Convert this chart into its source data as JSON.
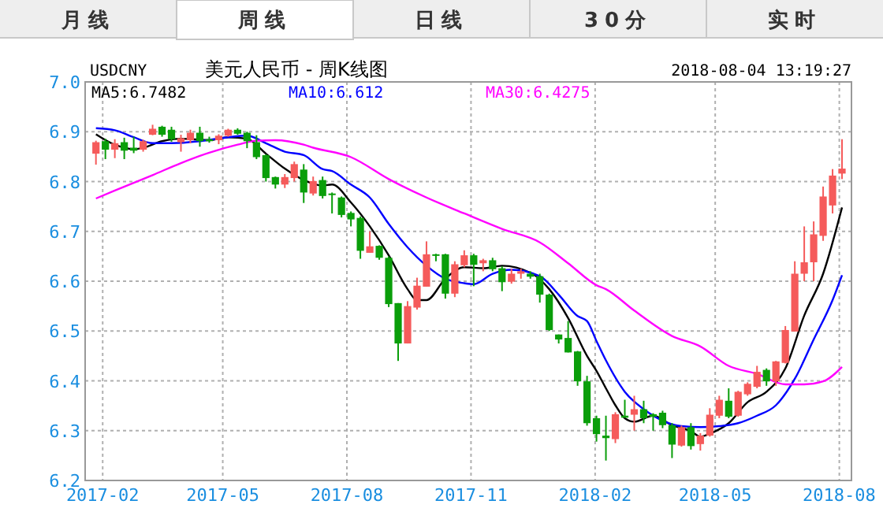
{
  "chart_data": {
    "type": "candlestick",
    "title": "美元人民币 - 周K线图",
    "annotations": [
      "月线",
      "周线",
      "日线",
      "30分",
      "实时",
      "USDCNY",
      "2018-08-04 13:19:27"
    ],
    "x": [
      "2017-01-27",
      "2017-02-03",
      "2017-02-10",
      "2017-02-17",
      "2017-02-24",
      "2017-03-03",
      "2017-03-10",
      "2017-03-17",
      "2017-03-24",
      "2017-03-31",
      "2017-04-07",
      "2017-04-14",
      "2017-04-21",
      "2017-04-28",
      "2017-05-05",
      "2017-05-12",
      "2017-05-19",
      "2017-05-26",
      "2017-06-02",
      "2017-06-09",
      "2017-06-16",
      "2017-06-23",
      "2017-06-30",
      "2017-07-07",
      "2017-07-14",
      "2017-07-21",
      "2017-07-28",
      "2017-08-04",
      "2017-08-11",
      "2017-08-18",
      "2017-08-25",
      "2017-09-01",
      "2017-09-08",
      "2017-09-15",
      "2017-09-22",
      "2017-09-29",
      "2017-10-06",
      "2017-10-13",
      "2017-10-20",
      "2017-10-27",
      "2017-11-03",
      "2017-11-10",
      "2017-11-17",
      "2017-11-24",
      "2017-12-01",
      "2017-12-08",
      "2017-12-15",
      "2017-12-22",
      "2017-12-29",
      "2018-01-05",
      "2018-01-12",
      "2018-01-19",
      "2018-01-26",
      "2018-02-02",
      "2018-02-09",
      "2018-02-16",
      "2018-02-23",
      "2018-03-02",
      "2018-03-09",
      "2018-03-16",
      "2018-03-23",
      "2018-03-30",
      "2018-04-06",
      "2018-04-13",
      "2018-04-20",
      "2018-04-27",
      "2018-05-04",
      "2018-05-11",
      "2018-05-18",
      "2018-05-25",
      "2018-06-01",
      "2018-06-08",
      "2018-06-15",
      "2018-06-22",
      "2018-06-29",
      "2018-07-06",
      "2018-07-13",
      "2018-07-20",
      "2018-07-27",
      "2018-08-03"
    ],
    "ohlc": [
      [
        6.856,
        6.882,
        6.834,
        6.879
      ],
      [
        6.881,
        6.886,
        6.845,
        6.864
      ],
      [
        6.864,
        6.885,
        6.847,
        6.877
      ],
      [
        6.879,
        6.888,
        6.845,
        6.862
      ],
      [
        6.868,
        6.89,
        6.857,
        6.862
      ],
      [
        6.864,
        6.884,
        6.86,
        6.881
      ],
      [
        6.894,
        6.914,
        6.893,
        6.906
      ],
      [
        6.91,
        6.912,
        6.89,
        6.894
      ],
      [
        6.904,
        6.91,
        6.88,
        6.885
      ],
      [
        6.879,
        6.894,
        6.86,
        6.887
      ],
      [
        6.883,
        6.904,
        6.877,
        6.898
      ],
      [
        6.898,
        6.91,
        6.87,
        6.881
      ],
      [
        6.885,
        6.89,
        6.878,
        6.881
      ],
      [
        6.883,
        6.895,
        6.875,
        6.892
      ],
      [
        6.892,
        6.906,
        6.89,
        6.904
      ],
      [
        6.904,
        6.907,
        6.894,
        6.896
      ],
      [
        6.898,
        6.9,
        6.867,
        6.881
      ],
      [
        6.879,
        6.893,
        6.845,
        6.849
      ],
      [
        6.853,
        6.855,
        6.8,
        6.807
      ],
      [
        6.809,
        6.81,
        6.786,
        6.794
      ],
      [
        6.794,
        6.815,
        6.787,
        6.809
      ],
      [
        6.807,
        6.84,
        6.8,
        6.835
      ],
      [
        6.824,
        6.835,
        6.757,
        6.778
      ],
      [
        6.776,
        6.81,
        6.772,
        6.801
      ],
      [
        6.803,
        6.81,
        6.766,
        6.771
      ],
      [
        6.776,
        6.778,
        6.736,
        6.774
      ],
      [
        6.768,
        6.77,
        6.728,
        6.733
      ],
      [
        6.737,
        6.74,
        6.71,
        6.724
      ],
      [
        6.727,
        6.73,
        6.645,
        6.661
      ],
      [
        6.657,
        6.7,
        6.657,
        6.67
      ],
      [
        6.671,
        6.672,
        6.643,
        6.647
      ],
      [
        6.647,
        6.65,
        6.548,
        6.554
      ],
      [
        6.556,
        6.556,
        6.44,
        6.475
      ],
      [
        6.475,
        6.56,
        6.475,
        6.55
      ],
      [
        6.547,
        6.607,
        6.543,
        6.591
      ],
      [
        6.589,
        6.68,
        6.589,
        6.654
      ],
      [
        6.654,
        6.655,
        6.64,
        6.652
      ],
      [
        6.654,
        6.655,
        6.565,
        6.575
      ],
      [
        6.575,
        6.64,
        6.568,
        6.634
      ],
      [
        6.632,
        6.662,
        6.628,
        6.652
      ],
      [
        6.652,
        6.655,
        6.59,
        6.633
      ],
      [
        6.636,
        6.645,
        6.62,
        6.642
      ],
      [
        6.642,
        6.647,
        6.62,
        6.624
      ],
      [
        6.626,
        6.63,
        6.58,
        6.598
      ],
      [
        6.599,
        6.625,
        6.595,
        6.615
      ],
      [
        6.615,
        6.625,
        6.605,
        6.62
      ],
      [
        6.615,
        6.62,
        6.605,
        6.609
      ],
      [
        6.61,
        6.615,
        6.557,
        6.573
      ],
      [
        6.573,
        6.575,
        6.5,
        6.502
      ],
      [
        6.493,
        6.493,
        6.475,
        6.483
      ],
      [
        6.486,
        6.52,
        6.457,
        6.457
      ],
      [
        6.459,
        6.46,
        6.39,
        6.399
      ],
      [
        6.399,
        6.41,
        6.31,
        6.315
      ],
      [
        6.325,
        6.33,
        6.278,
        6.293
      ],
      [
        6.29,
        6.33,
        6.24,
        6.285
      ],
      [
        6.283,
        6.337,
        6.275,
        6.333
      ],
      [
        6.33,
        6.362,
        6.326,
        6.326
      ],
      [
        6.332,
        6.37,
        6.3,
        6.343
      ],
      [
        6.343,
        6.36,
        6.315,
        6.325
      ],
      [
        6.333,
        6.335,
        6.3,
        6.328
      ],
      [
        6.336,
        6.34,
        6.305,
        6.311
      ],
      [
        6.311,
        6.315,
        6.245,
        6.272
      ],
      [
        6.27,
        6.31,
        6.268,
        6.307
      ],
      [
        6.307,
        6.315,
        6.262,
        6.269
      ],
      [
        6.273,
        6.295,
        6.26,
        6.29
      ],
      [
        6.29,
        6.345,
        6.288,
        6.332
      ],
      [
        6.33,
        6.37,
        6.325,
        6.362
      ],
      [
        6.36,
        6.385,
        6.325,
        6.328
      ],
      [
        6.33,
        6.38,
        6.328,
        6.378
      ],
      [
        6.373,
        6.397,
        6.37,
        6.394
      ],
      [
        6.388,
        6.43,
        6.385,
        6.418
      ],
      [
        6.422,
        6.425,
        6.39,
        6.399
      ],
      [
        6.399,
        6.44,
        6.39,
        6.439
      ],
      [
        6.436,
        6.51,
        6.435,
        6.502
      ],
      [
        6.499,
        6.64,
        6.499,
        6.615
      ],
      [
        6.615,
        6.71,
        6.6,
        6.638
      ],
      [
        6.638,
        6.72,
        6.6,
        6.694
      ],
      [
        6.691,
        6.79,
        6.681,
        6.77
      ],
      [
        6.752,
        6.825,
        6.736,
        6.812
      ],
      [
        6.816,
        6.885,
        6.805,
        6.826
      ]
    ],
    "series": [
      {
        "name": "MA5:6.7482",
        "type": "line",
        "color": "#000000",
        "x": [
          "2017-01-27",
          "2017-02-10",
          "2017-02-24",
          "2017-03-03",
          "2017-03-17",
          "2017-03-31",
          "2017-04-21",
          "2017-05-05",
          "2017-05-19",
          "2017-06-02",
          "2017-06-16",
          "2017-06-30",
          "2017-07-14",
          "2017-07-21",
          "2017-08-04",
          "2017-08-18",
          "2017-09-01",
          "2017-09-15",
          "2017-09-22",
          "2017-09-29",
          "2017-10-13",
          "2017-10-27",
          "2017-11-10",
          "2017-11-24",
          "2017-12-15",
          "2017-12-29",
          "2018-01-12",
          "2018-01-26",
          "2018-02-02",
          "2018-02-09",
          "2018-02-16",
          "2018-02-23",
          "2018-03-02",
          "2018-03-16",
          "2018-03-30",
          "2018-04-13",
          "2018-04-20",
          "2018-04-27",
          "2018-05-11",
          "2018-05-25",
          "2018-06-08",
          "2018-06-22",
          "2018-07-06",
          "2018-07-20",
          "2018-08-03"
        ],
        "values": [
          6.895,
          6.874,
          6.865,
          6.868,
          6.881,
          6.886,
          6.883,
          6.889,
          6.886,
          6.856,
          6.826,
          6.803,
          6.792,
          6.794,
          6.758,
          6.71,
          6.652,
          6.584,
          6.562,
          6.562,
          6.605,
          6.628,
          6.626,
          6.631,
          6.617,
          6.584,
          6.526,
          6.45,
          6.42,
          6.385,
          6.351,
          6.325,
          6.318,
          6.33,
          6.311,
          6.299,
          6.288,
          6.294,
          6.315,
          6.357,
          6.378,
          6.425,
          6.531,
          6.615,
          6.748
        ]
      },
      {
        "name": "MA10:6.612",
        "type": "line",
        "color": "#0000ff",
        "x": [
          "2017-01-27",
          "2017-02-10",
          "2017-02-24",
          "2017-03-10",
          "2017-03-24",
          "2017-04-14",
          "2017-05-05",
          "2017-05-19",
          "2017-06-02",
          "2017-06-16",
          "2017-06-30",
          "2017-07-14",
          "2017-07-21",
          "2017-08-04",
          "2017-08-18",
          "2017-09-01",
          "2017-09-15",
          "2017-09-29",
          "2017-10-13",
          "2017-10-27",
          "2017-11-03",
          "2017-11-17",
          "2017-12-01",
          "2017-12-22",
          "2018-01-05",
          "2018-01-19",
          "2018-01-26",
          "2018-02-02",
          "2018-02-09",
          "2018-02-23",
          "2018-03-09",
          "2018-03-23",
          "2018-04-06",
          "2018-04-20",
          "2018-05-04",
          "2018-05-18",
          "2018-06-01",
          "2018-06-15",
          "2018-06-29",
          "2018-07-13",
          "2018-07-27",
          "2018-08-03"
        ],
        "values": [
          6.907,
          6.903,
          6.889,
          6.877,
          6.877,
          6.881,
          6.889,
          6.892,
          6.877,
          6.86,
          6.853,
          6.825,
          6.821,
          6.794,
          6.768,
          6.715,
          6.668,
          6.631,
          6.605,
          6.596,
          6.594,
          6.615,
          6.623,
          6.61,
          6.573,
          6.53,
          6.52,
          6.48,
          6.441,
          6.378,
          6.343,
          6.32,
          6.309,
          6.307,
          6.309,
          6.315,
          6.33,
          6.351,
          6.404,
          6.483,
          6.562,
          6.612
        ]
      },
      {
        "name": "MA30:6.4275",
        "type": "line",
        "color": "#ff00ff",
        "x": [
          "2017-01-27",
          "2017-02-10",
          "2017-03-10",
          "2017-03-31",
          "2017-04-21",
          "2017-05-12",
          "2017-05-26",
          "2017-06-09",
          "2017-06-30",
          "2017-07-07",
          "2017-08-04",
          "2017-09-01",
          "2017-09-29",
          "2017-10-27",
          "2017-11-24",
          "2017-12-22",
          "2018-01-12",
          "2018-02-02",
          "2018-02-09",
          "2018-03-02",
          "2018-03-30",
          "2018-04-20",
          "2018-05-11",
          "2018-06-01",
          "2018-06-22",
          "2018-07-06",
          "2018-07-20",
          "2018-08-03"
        ],
        "values": [
          6.766,
          6.782,
          6.813,
          6.837,
          6.858,
          6.874,
          6.882,
          6.883,
          6.874,
          6.868,
          6.849,
          6.805,
          6.768,
          6.736,
          6.705,
          6.678,
          6.636,
          6.592,
          6.584,
          6.541,
          6.49,
          6.469,
          6.43,
          6.414,
          6.393,
          6.393,
          6.399,
          6.428
        ]
      }
    ],
    "xlim": [
      "2017-01-19",
      "2018-08-10"
    ],
    "xticks": [
      "2017-02",
      "2017-05",
      "2017-08",
      "2017-11",
      "2018-02",
      "2018-05",
      "2018-08"
    ],
    "ylim": [
      6.2,
      7.0
    ],
    "yticks": [
      6.2,
      6.3,
      6.4,
      6.5,
      6.6,
      6.7,
      6.8,
      6.9,
      {
        "value": 7.0,
        "label": "7.0"
      }
    ],
    "grid": true,
    "legend": "top"
  }
}
